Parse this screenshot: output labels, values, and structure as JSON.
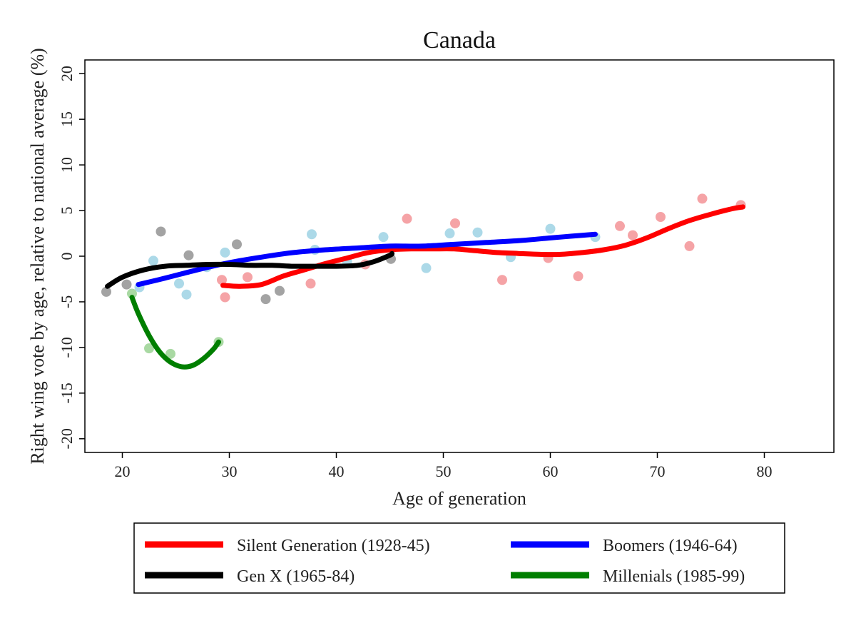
{
  "chart_data": {
    "type": "scatter",
    "title": "Canada",
    "xlabel": "Age of generation",
    "ylabel": "Right wing vote by age, relative to national average (%)",
    "xlim": [
      16.5,
      86.5
    ],
    "ylim": [
      -21.5,
      21.5
    ],
    "xticks": [
      20,
      30,
      40,
      50,
      60,
      70,
      80
    ],
    "yticks": [
      20,
      15,
      10,
      5,
      0,
      -5,
      -10,
      -15,
      -20
    ],
    "ytick_labels": [
      "20",
      "15",
      "10",
      "5",
      "0",
      "-5",
      "-10",
      "-15",
      "-20"
    ],
    "grid": false,
    "legend_position": "bottom",
    "series": [
      {
        "name": "Silent Generation (1928-45)",
        "line_color": "#ff0000",
        "point_color": "#f5a3a6",
        "points": [
          [
            29.3,
            -2.6
          ],
          [
            29.6,
            -4.5
          ],
          [
            31.7,
            -2.3
          ],
          [
            37.6,
            -3.0
          ],
          [
            42.7,
            -0.9
          ],
          [
            46.6,
            4.1
          ],
          [
            51.1,
            3.6
          ],
          [
            55.5,
            -2.6
          ],
          [
            59.8,
            -0.2
          ],
          [
            62.6,
            -2.2
          ],
          [
            66.5,
            3.3
          ],
          [
            67.7,
            2.3
          ],
          [
            70.3,
            4.3
          ],
          [
            73.0,
            1.1
          ],
          [
            74.2,
            6.3
          ],
          [
            77.8,
            5.6
          ]
        ],
        "line": [
          [
            29.4,
            -3.2
          ],
          [
            31.0,
            -3.3
          ],
          [
            33.0,
            -3.1
          ],
          [
            35.0,
            -2.2
          ],
          [
            37.0,
            -1.5
          ],
          [
            39.0,
            -0.8
          ],
          [
            41.0,
            -0.2
          ],
          [
            43.0,
            0.4
          ],
          [
            45.0,
            0.7
          ],
          [
            47.0,
            0.8
          ],
          [
            49.0,
            0.8
          ],
          [
            51.0,
            0.8
          ],
          [
            53.0,
            0.6
          ],
          [
            55.0,
            0.4
          ],
          [
            57.0,
            0.3
          ],
          [
            59.0,
            0.2
          ],
          [
            61.0,
            0.2
          ],
          [
            63.0,
            0.4
          ],
          [
            65.0,
            0.7
          ],
          [
            67.0,
            1.2
          ],
          [
            69.0,
            2.0
          ],
          [
            71.0,
            3.0
          ],
          [
            73.0,
            3.9
          ],
          [
            75.0,
            4.6
          ],
          [
            77.0,
            5.2
          ],
          [
            78.0,
            5.4
          ]
        ]
      },
      {
        "name": "Boomers (1946-64)",
        "line_color": "#0000ff",
        "point_color": "#acd9e8",
        "points": [
          [
            21.6,
            -3.4
          ],
          [
            22.9,
            -0.5
          ],
          [
            25.3,
            -3.0
          ],
          [
            26.0,
            -4.2
          ],
          [
            27.9,
            -1.2
          ],
          [
            29.6,
            0.4
          ],
          [
            37.7,
            2.4
          ],
          [
            38.0,
            0.7
          ],
          [
            41.0,
            -0.6
          ],
          [
            44.4,
            2.1
          ],
          [
            48.4,
            -1.3
          ],
          [
            50.6,
            2.5
          ],
          [
            53.2,
            2.6
          ],
          [
            56.3,
            -0.1
          ],
          [
            60.0,
            3.0
          ],
          [
            64.2,
            2.1
          ]
        ],
        "line": [
          [
            21.5,
            -3.1
          ],
          [
            24.0,
            -2.4
          ],
          [
            27.0,
            -1.5
          ],
          [
            30.0,
            -0.7
          ],
          [
            33.0,
            -0.1
          ],
          [
            36.0,
            0.4
          ],
          [
            39.0,
            0.7
          ],
          [
            42.0,
            0.9
          ],
          [
            45.0,
            1.1
          ],
          [
            48.0,
            1.1
          ],
          [
            51.0,
            1.3
          ],
          [
            54.0,
            1.5
          ],
          [
            57.0,
            1.7
          ],
          [
            60.0,
            2.0
          ],
          [
            62.0,
            2.2
          ],
          [
            64.2,
            2.4
          ]
        ]
      },
      {
        "name": "Gen X (1965-84)",
        "line_color": "#000000",
        "point_color": "#a3a3a3",
        "points": [
          [
            18.5,
            -3.9
          ],
          [
            20.4,
            -3.1
          ],
          [
            23.6,
            2.7
          ],
          [
            26.2,
            0.1
          ],
          [
            30.7,
            1.3
          ],
          [
            33.4,
            -4.7
          ],
          [
            34.7,
            -3.8
          ],
          [
            45.1,
            -0.3
          ]
        ],
        "line": [
          [
            18.6,
            -3.3
          ],
          [
            20.0,
            -2.3
          ],
          [
            22.0,
            -1.5
          ],
          [
            24.0,
            -1.1
          ],
          [
            26.0,
            -1.0
          ],
          [
            28.0,
            -0.9
          ],
          [
            30.0,
            -0.9
          ],
          [
            32.0,
            -1.0
          ],
          [
            34.0,
            -1.0
          ],
          [
            36.0,
            -1.1
          ],
          [
            38.0,
            -1.1
          ],
          [
            40.0,
            -1.1
          ],
          [
            42.0,
            -1.0
          ],
          [
            43.5,
            -0.6
          ],
          [
            45.0,
            0.1
          ],
          [
            45.2,
            0.3
          ]
        ]
      },
      {
        "name": "Millenials (1985-99)",
        "line_color": "#007f00",
        "point_color": "#a9d9a3",
        "points": [
          [
            20.9,
            -4.1
          ],
          [
            22.5,
            -10.1
          ],
          [
            24.5,
            -10.7
          ],
          [
            29.0,
            -9.4
          ]
        ],
        "line": [
          [
            20.9,
            -4.5
          ],
          [
            21.5,
            -6.3
          ],
          [
            22.5,
            -8.7
          ],
          [
            23.5,
            -10.5
          ],
          [
            24.5,
            -11.6
          ],
          [
            25.5,
            -12.1
          ],
          [
            26.5,
            -12.0
          ],
          [
            27.5,
            -11.3
          ],
          [
            28.5,
            -10.2
          ],
          [
            29.0,
            -9.4
          ]
        ]
      }
    ]
  }
}
